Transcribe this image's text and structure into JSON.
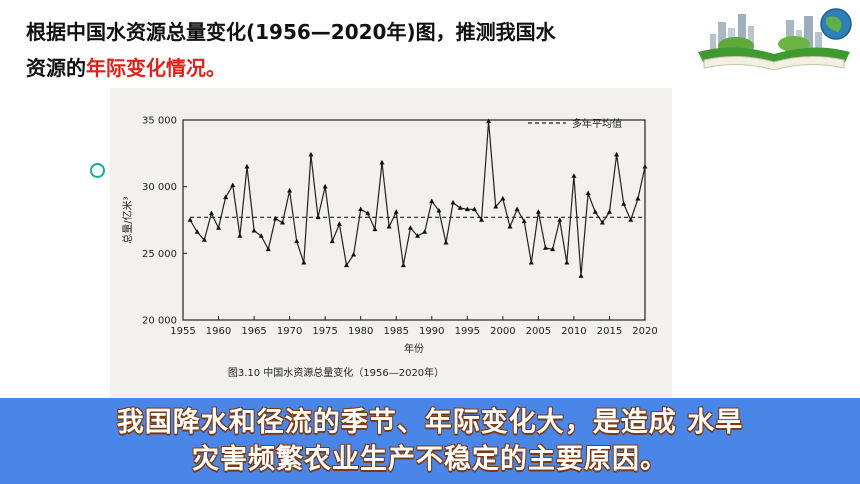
{
  "question": {
    "line1": "根据中国水资源总量变化(1956—2020年)图，推测我国水",
    "line2_prefix": "资源的",
    "line2_highlight": "年际变化情况。"
  },
  "conclusion": {
    "line1": "我国降水和径流的季节、年际变化大，是造成  水旱",
    "line2": "灾害频繁农业生产不稳定的主要原因。"
  },
  "colors": {
    "highlight": "#e0221b",
    "banner": "#4a86e8",
    "bullet": "#1aa89a"
  },
  "icons": {
    "book": "book-with-city-illustration",
    "bullet": "hollow-circle-bullet"
  },
  "chart_data": {
    "type": "line",
    "title": "",
    "caption": "图3.10  中国水资源总量变化（1956—2020年）",
    "xlabel": "年份",
    "ylabel": "总量/亿米³",
    "xlim": [
      1955,
      2020
    ],
    "ylim": [
      20000,
      35000
    ],
    "xticks": [
      1955,
      1960,
      1965,
      1970,
      1975,
      1980,
      1985,
      1990,
      1995,
      2000,
      2005,
      2010,
      2015,
      2020
    ],
    "yticks": [
      20000,
      25000,
      30000,
      35000
    ],
    "ytick_labels": [
      "20 000",
      "25 000",
      "30 000",
      "35 000"
    ],
    "legend": {
      "label": "多年平均值",
      "position": "top-right"
    },
    "mean": 27700,
    "series": [
      {
        "x": [
          1956,
          1957,
          1958,
          1959,
          1960,
          1961,
          1962,
          1963,
          1964,
          1965,
          1966,
          1967,
          1968,
          1969,
          1970,
          1971,
          1972,
          1973,
          1974,
          1975,
          1976,
          1977,
          1978,
          1979,
          1980,
          1981,
          1982,
          1983,
          1984,
          1985,
          1986,
          1987,
          1988,
          1989,
          1990,
          1991,
          1992,
          1993,
          1994,
          1995,
          1996,
          1997,
          1998,
          1999,
          2000,
          2001,
          2002,
          2003,
          2004,
          2005,
          2006,
          2007,
          2008,
          2009,
          2010,
          2011,
          2012,
          2013,
          2014,
          2015,
          2016,
          2017,
          2018,
          2019,
          2020
        ],
        "values": [
          27500,
          26600,
          26000,
          28000,
          26900,
          29200,
          30100,
          26300,
          31500,
          26700,
          26300,
          25300,
          27600,
          27300,
          29700,
          25900,
          24300,
          32400,
          27700,
          30000,
          25900,
          27200,
          24100,
          24900,
          28300,
          28000,
          26800,
          31800,
          27000,
          28100,
          24100,
          26900,
          26300,
          26600,
          28900,
          28200,
          25800,
          28800,
          28400,
          28300,
          28300,
          27500,
          34900,
          28500,
          29100,
          27000,
          28300,
          27400,
          24300,
          28100,
          25400,
          25300,
          27500,
          24300,
          30800,
          23300,
          29500,
          28100,
          27300,
          28100,
          32400,
          28700,
          27500,
          29100,
          31500
        ]
      }
    ]
  }
}
